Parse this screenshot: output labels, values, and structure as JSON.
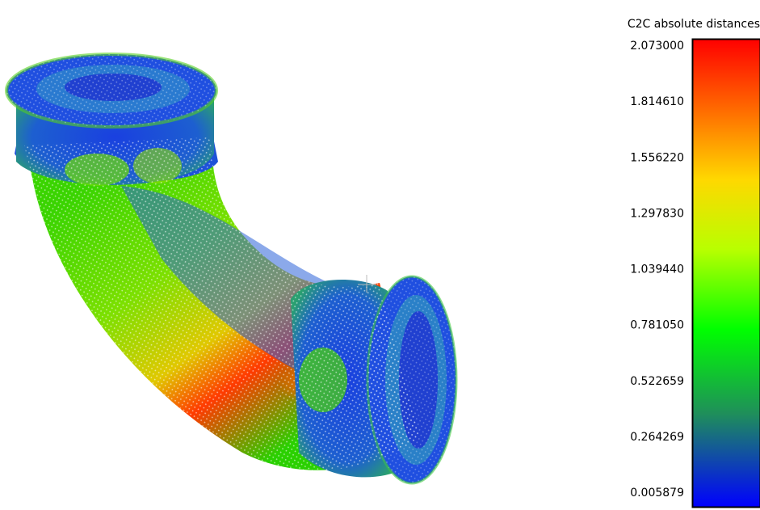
{
  "colorbar": {
    "title": "C2C absolute distances",
    "labels": [
      "2.073000",
      "1.814610",
      "1.556220",
      "1.297830",
      "1.039440",
      "0.781050",
      "0.522659",
      "0.264269",
      "0.005879"
    ]
  }
}
